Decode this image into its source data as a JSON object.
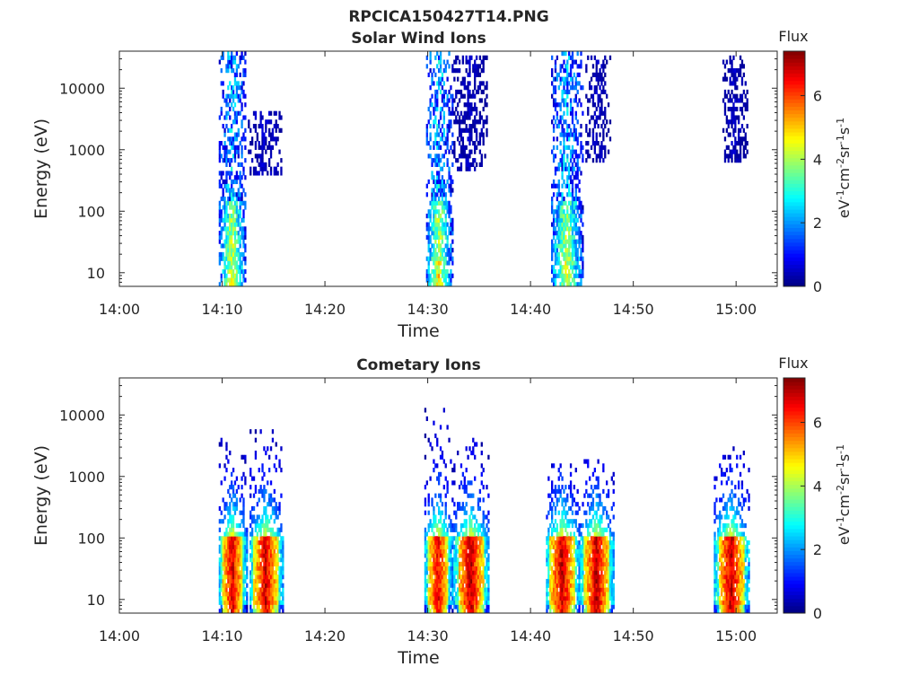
{
  "figure_title": "RPCICA150427T14.PNG",
  "chart_data": [
    {
      "type": "heatmap",
      "title": "Solar Wind Ions",
      "xlabel": "Time",
      "ylabel": "Energy (eV)",
      "yscale": "log",
      "x_range_minutes": [
        840,
        904
      ],
      "xticks": [
        "14:00",
        "14:10",
        "14:20",
        "14:30",
        "14:40",
        "14:50",
        "15:00"
      ],
      "ylim": [
        6,
        40000
      ],
      "yticks": [
        {
          "value": 10,
          "label": "10"
        },
        {
          "value": 100,
          "label": "100"
        },
        {
          "value": 1000,
          "label": "1000"
        },
        {
          "value": 10000,
          "label": "10000"
        }
      ],
      "colorbar": {
        "label": "Flux",
        "units": "eV-1cm-2sr-1s-1",
        "ticks": [
          "0",
          "2",
          "4",
          "6"
        ],
        "range": [
          0,
          7.4
        ],
        "colormap": "jet"
      },
      "bursts": [
        {
          "start": "14:09:40",
          "end": "14:12:15",
          "emin": 6,
          "emax": 40000,
          "core_flux": 4.6
        },
        {
          "start": "14:12:30",
          "end": "14:15:40",
          "emin": 450,
          "emax": 4000,
          "core_flux": 1.2
        },
        {
          "start": "14:29:50",
          "end": "14:32:20",
          "emin": 6,
          "emax": 40000,
          "core_flux": 4.8
        },
        {
          "start": "14:32:30",
          "end": "14:35:40",
          "emin": 500,
          "emax": 30000,
          "core_flux": 1.0
        },
        {
          "start": "14:42:00",
          "end": "14:45:00",
          "emin": 6,
          "emax": 40000,
          "core_flux": 4.6
        },
        {
          "start": "14:45:20",
          "end": "14:47:40",
          "emin": 700,
          "emax": 30000,
          "core_flux": 1.0
        },
        {
          "start": "14:58:40",
          "end": "15:01:00",
          "emin": 700,
          "emax": 30000,
          "core_flux": 1.0
        }
      ]
    },
    {
      "type": "heatmap",
      "title": "Cometary Ions",
      "xlabel": "Time",
      "ylabel": "Energy (eV)",
      "yscale": "log",
      "x_range_minutes": [
        840,
        904
      ],
      "xticks": [
        "14:00",
        "14:10",
        "14:20",
        "14:30",
        "14:40",
        "14:50",
        "15:00"
      ],
      "ylim": [
        6,
        40000
      ],
      "yticks": [
        {
          "value": 10,
          "label": "10"
        },
        {
          "value": 100,
          "label": "100"
        },
        {
          "value": 1000,
          "label": "1000"
        },
        {
          "value": 10000,
          "label": "10000"
        }
      ],
      "colorbar": {
        "label": "Flux",
        "units": "eV-1cm-2sr-1s-1",
        "ticks": [
          "0",
          "2",
          "4",
          "6"
        ],
        "range": [
          0,
          7.4
        ],
        "colormap": "jet"
      },
      "bursts": [
        {
          "start": "14:09:40",
          "end": "14:12:20",
          "emin": 6,
          "emax": 6000,
          "core_flux": 6.8
        },
        {
          "start": "14:12:40",
          "end": "14:15:50",
          "emin": 6,
          "emax": 6000,
          "core_flux": 6.8
        },
        {
          "start": "14:29:40",
          "end": "14:32:20",
          "emin": 6,
          "emax": 12000,
          "core_flux": 6.6
        },
        {
          "start": "14:32:30",
          "end": "14:35:50",
          "emin": 6,
          "emax": 4000,
          "core_flux": 7.0
        },
        {
          "start": "14:41:30",
          "end": "14:44:40",
          "emin": 6,
          "emax": 1500,
          "core_flux": 6.9
        },
        {
          "start": "14:44:50",
          "end": "14:48:00",
          "emin": 6,
          "emax": 2000,
          "core_flux": 6.9
        },
        {
          "start": "14:57:50",
          "end": "15:01:10",
          "emin": 6,
          "emax": 3000,
          "core_flux": 6.9
        }
      ]
    }
  ]
}
